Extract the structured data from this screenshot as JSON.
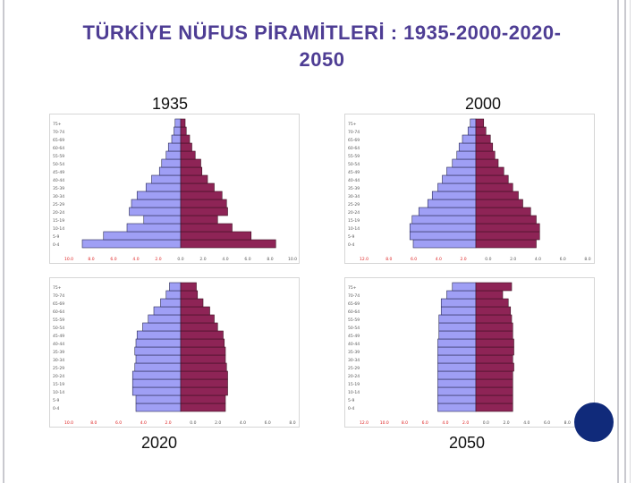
{
  "title_line1": "TÜRKİYE NÜFUS PİRAMİTLERİ : 1935-2000-2020-",
  "title_line2": "2050",
  "colors": {
    "male": "#9f9ff5",
    "female": "#8e2456",
    "title": "#4e3d94",
    "nav": "#102a7a"
  },
  "chart_data": [
    {
      "type": "bar",
      "title": "1935",
      "categories": [
        "0-4",
        "5-9",
        "10-14",
        "15-19",
        "20-24",
        "25-29",
        "30-34",
        "35-39",
        "40-44",
        "45-49",
        "50-54",
        "55-59",
        "60-64",
        "65-69",
        "70-74",
        "75+"
      ],
      "category_labels": [
        "0-4",
        "5-9",
        "10-14",
        "15-19",
        "20-24",
        "25-29",
        "30-34",
        "35-39",
        "40-44",
        "45-49",
        "50-54",
        "55-59",
        "60-64",
        "65-69",
        "70-74",
        "75+"
      ],
      "series": [
        {
          "values": [
            -8.8,
            -6.9,
            -4.8,
            -3.3,
            -4.6,
            -4.4,
            -3.9,
            -3.1,
            -2.6,
            -1.9,
            -1.7,
            -1.3,
            -1.1,
            -0.8,
            -0.6,
            -0.5
          ]
        },
        {
          "values": [
            8.5,
            6.3,
            4.6,
            3.3,
            4.2,
            4.1,
            3.7,
            3.0,
            2.4,
            1.9,
            1.8,
            1.3,
            1.0,
            0.8,
            0.5,
            0.4
          ]
        }
      ],
      "xticks": [
        "10.0",
        "8.0",
        "6.0",
        "4.0",
        "2.0",
        "0.0",
        "2.0",
        "4.0",
        "6.0",
        "8.0",
        "10.0"
      ],
      "xlim": [
        -10,
        10
      ]
    },
    {
      "type": "bar",
      "title": "2000",
      "categories": [
        "0-4",
        "5-9",
        "10-14",
        "15-19",
        "20-24",
        "25-29",
        "30-34",
        "35-39",
        "40-44",
        "45-49",
        "50-54",
        "55-59",
        "60-64",
        "65-69",
        "70-74",
        "75+"
      ],
      "category_labels": [
        "0-4",
        "5-9",
        "10-14",
        "15-19",
        "20-24",
        "25-29",
        "30-34",
        "35-39",
        "40-44",
        "45-49",
        "50-54",
        "55-59",
        "60-64",
        "65-69",
        "70-74",
        "75+"
      ],
      "series": [
        {
          "values": [
            -5.6,
            -5.9,
            -5.9,
            -5.7,
            -5.1,
            -4.3,
            -3.9,
            -3.4,
            -3.0,
            -2.6,
            -2.1,
            -1.7,
            -1.5,
            -1.2,
            -0.7,
            -0.5
          ]
        },
        {
          "values": [
            5.4,
            5.7,
            5.7,
            5.4,
            4.9,
            4.2,
            3.8,
            3.3,
            2.9,
            2.5,
            2.0,
            1.7,
            1.5,
            1.3,
            0.9,
            0.7
          ]
        }
      ],
      "xticks": [
        "12.0",
        "8.0",
        "6.0",
        "4.0",
        "2.0",
        "0.0",
        "2.0",
        "4.0",
        "6.0",
        "8.0"
      ],
      "xlim": [
        -10,
        10
      ]
    },
    {
      "type": "bar",
      "title": "2020",
      "categories": [
        "0-4",
        "5-9",
        "10-14",
        "15-19",
        "20-24",
        "25-29",
        "30-34",
        "35-39",
        "40-44",
        "45-49",
        "50-54",
        "55-59",
        "60-64",
        "65-69",
        "70-74",
        "75+"
      ],
      "category_labels": [
        "0-4",
        "5-9",
        "10-14",
        "15-19",
        "20-24",
        "25-29",
        "30-34",
        "35-39",
        "40-44",
        "45-49",
        "50-54",
        "55-59",
        "60-64",
        "65-69",
        "70-74",
        "75+"
      ],
      "series": [
        {
          "values": [
            -4.0,
            -4.0,
            -4.3,
            -4.3,
            -4.3,
            -4.1,
            -4.0,
            -4.1,
            -4.0,
            -3.9,
            -3.4,
            -2.9,
            -2.4,
            -1.8,
            -1.3,
            -1.0
          ]
        },
        {
          "values": [
            4.0,
            4.0,
            4.2,
            4.2,
            4.2,
            4.1,
            4.0,
            4.0,
            3.9,
            3.8,
            3.3,
            3.0,
            2.6,
            2.0,
            1.5,
            1.4
          ]
        }
      ],
      "xticks": [
        "10.0",
        "8.0",
        "6.0",
        "4.0",
        "2.0",
        "0.0",
        "2.0",
        "4.0",
        "6.0",
        "8.0"
      ],
      "xlim": [
        -10,
        10
      ]
    },
    {
      "type": "bar",
      "title": "2050",
      "categories": [
        "0-4",
        "5-9",
        "10-14",
        "15-19",
        "20-24",
        "25-29",
        "30-34",
        "35-39",
        "40-44",
        "45-49",
        "50-54",
        "55-59",
        "60-64",
        "65-69",
        "70-74",
        "75+"
      ],
      "category_labels": [
        "0-4",
        "5-9",
        "10-14",
        "15-19",
        "20-24",
        "25-29",
        "30-34",
        "35-39",
        "40-44",
        "45-49",
        "50-54",
        "55-59",
        "60-64",
        "65-69",
        "70-74",
        "75+"
      ],
      "series": [
        {
          "values": [
            -3.4,
            -3.4,
            -3.4,
            -3.4,
            -3.4,
            -3.4,
            -3.4,
            -3.4,
            -3.4,
            -3.3,
            -3.3,
            -3.3,
            -3.1,
            -3.1,
            -2.6,
            -2.1
          ]
        },
        {
          "values": [
            3.3,
            3.3,
            3.3,
            3.3,
            3.3,
            3.4,
            3.3,
            3.4,
            3.4,
            3.3,
            3.3,
            3.2,
            3.1,
            2.9,
            2.4,
            3.2
          ]
        }
      ],
      "xticks": [
        "12.0",
        "10.0",
        "8.0",
        "6.0",
        "4.0",
        "2.0",
        "0.0",
        "2.0",
        "4.0",
        "6.0",
        "8.0",
        "10.0"
      ],
      "xlim": [
        -10,
        10
      ]
    }
  ]
}
